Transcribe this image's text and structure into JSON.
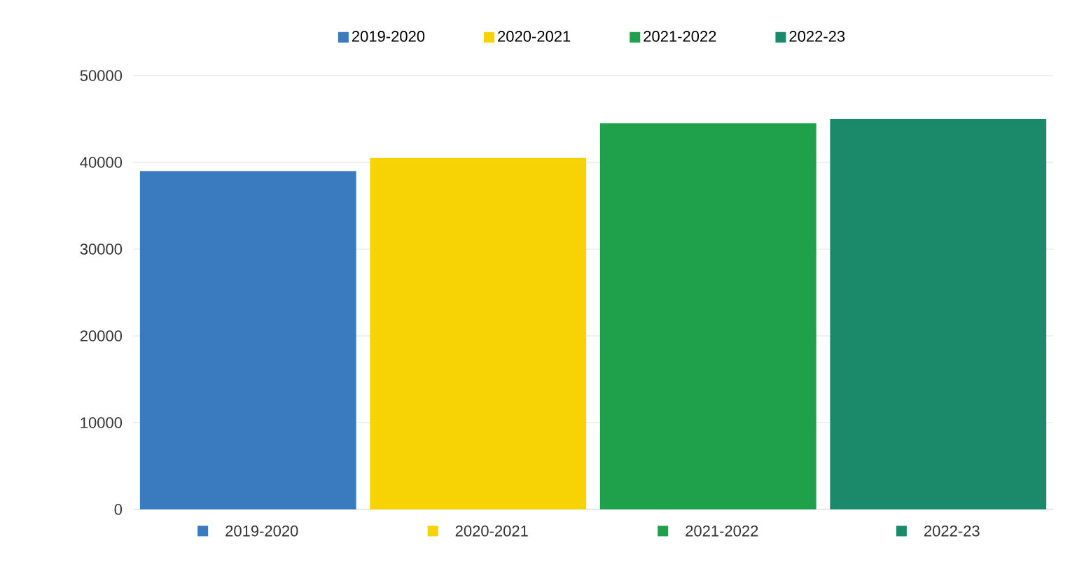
{
  "chart_data": {
    "type": "bar",
    "categories": [
      "2019-2020",
      "2020-2021",
      "2021-2022",
      "2022-23"
    ],
    "series": [
      {
        "name": "2019-2020",
        "color": "#3a7abf",
        "values": [
          39000,
          null,
          null,
          null
        ]
      },
      {
        "name": "2020-2021",
        "color": "#f7d305",
        "values": [
          null,
          40500,
          null,
          null
        ]
      },
      {
        "name": "2021-2022",
        "color": "#1fa04a",
        "values": [
          null,
          null,
          44500,
          null
        ]
      },
      {
        "name": "2022-23",
        "color": "#1b8a6b",
        "values": [
          null,
          null,
          null,
          45000
        ]
      }
    ],
    "ylim": [
      0,
      50000
    ],
    "yticks": [
      0,
      10000,
      20000,
      30000,
      40000,
      50000
    ],
    "grid": "y",
    "legend": "top"
  }
}
